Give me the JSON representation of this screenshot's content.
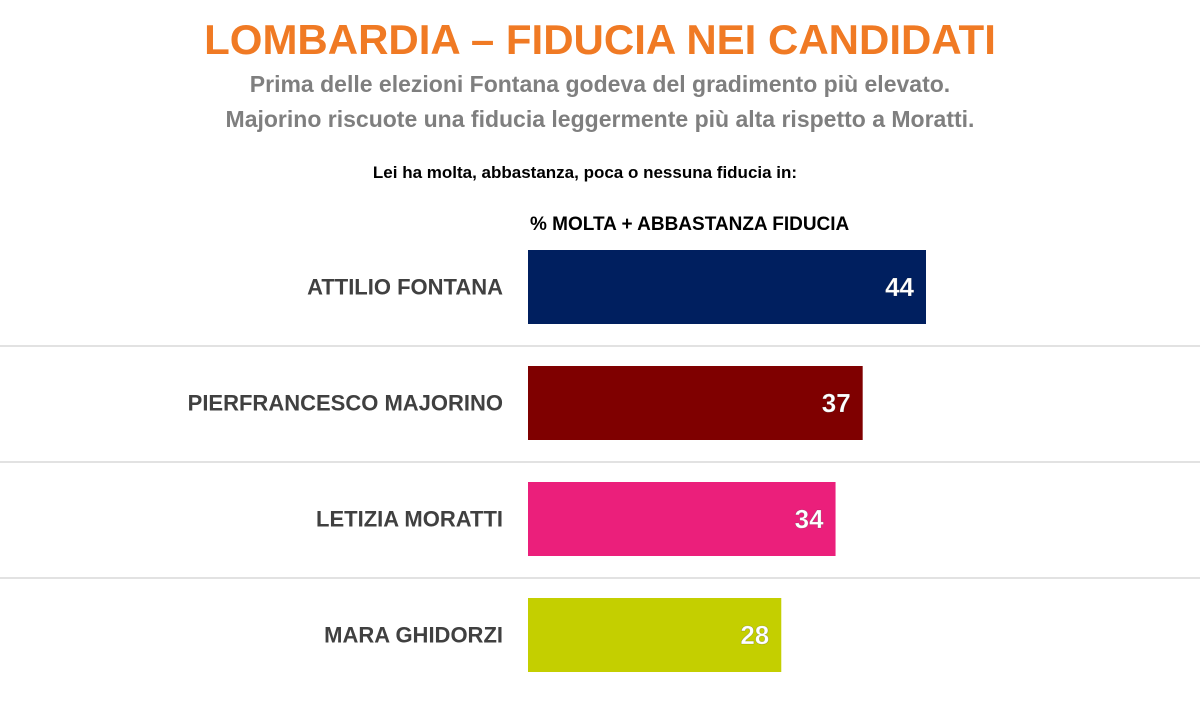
{
  "header": {
    "title": "LOMBARDIA – FIDUCIA NEI CANDIDATI",
    "subtitle_line1": "Prima delle elezioni Fontana godeva del gradimento più elevato.",
    "subtitle_line2": "Majorino riscuote una fiducia leggermente più alta rispetto a Moratti.",
    "question": "Lei ha molta, abbastanza, poca o nessuna fiducia in:",
    "column_header": "% MOLTA + ABBASTANZA FIDUCIA"
  },
  "colors": {
    "title": "#f07a24",
    "subtitle": "#7f7f7f",
    "label": "#404040",
    "separator": "#d9d9d9"
  },
  "chart_data": {
    "type": "bar",
    "orientation": "horizontal",
    "categories": [
      "ATTILIO FONTANA",
      "PIERFRANCESCO MAJORINO",
      "LETIZIA MORATTI",
      "MARA GHIDORZI"
    ],
    "values": [
      44,
      37,
      34,
      28
    ],
    "bar_colors": [
      "#001f5f",
      "#7f0000",
      "#eb1f7b",
      "#c4cf00"
    ],
    "value_label_color": "#ffffff",
    "title": "% MOLTA + ABBASTANZA FIDUCIA",
    "xlabel": "",
    "ylabel": "",
    "xlim": [
      0,
      44
    ],
    "grid": false,
    "legend": "none",
    "data_labels": "inside-end"
  }
}
